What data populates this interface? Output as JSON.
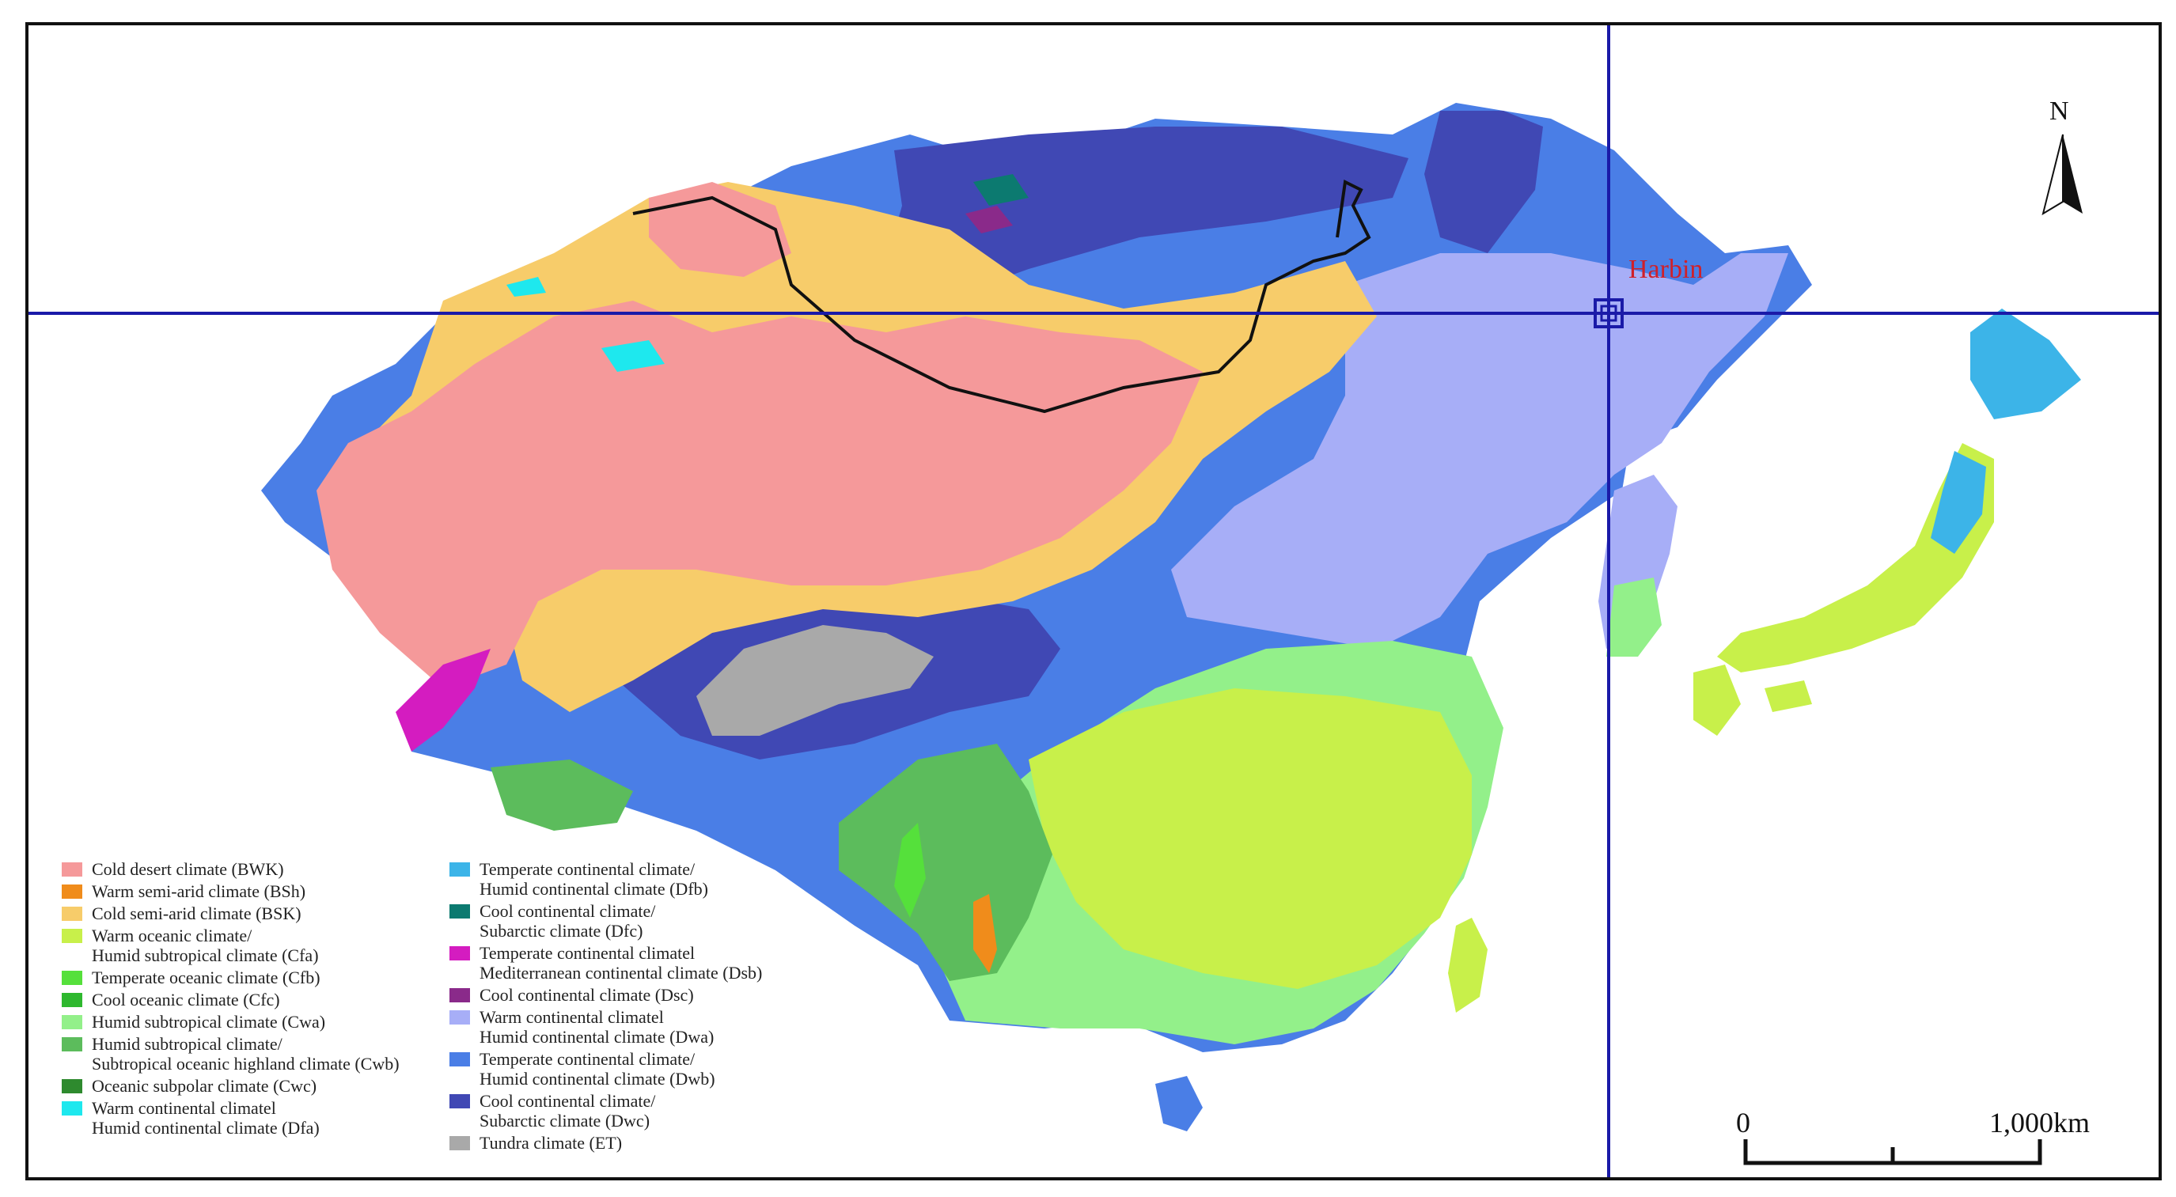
{
  "city": {
    "label": "Harbin"
  },
  "north_arrow": {
    "label": "N"
  },
  "scale_bar": {
    "start_label": "0",
    "end_label": "1,000km"
  },
  "legend": {
    "column_1": [
      {
        "lines": [
          "Cold desert climate (BWK)"
        ],
        "color": "#f5999a"
      },
      {
        "lines": [
          "Warm semi-arid climate (BSh)"
        ],
        "color": "#f08c1b"
      },
      {
        "lines": [
          "Cold semi-arid climate (BSK)"
        ],
        "color": "#f7cc6a"
      },
      {
        "lines": [
          "Warm oceanic climate/",
          "Humid subtropical climate (Cfa)"
        ],
        "color": "#c8f04a"
      },
      {
        "lines": [
          "Temperate oceanic climate (Cfb)"
        ],
        "color": "#55e03b"
      },
      {
        "lines": [
          "Cool oceanic climate (Cfc)"
        ],
        "color": "#2eb82e"
      },
      {
        "lines": [
          "Humid subtropical climate (Cwa)"
        ],
        "color": "#93f08a"
      },
      {
        "lines": [
          "Humid subtropical climate/",
          "Subtropical oceanic highland climate (Cwb)"
        ],
        "color": "#5cbc5c"
      },
      {
        "lines": [
          "Oceanic subpolar climate (Cwc)"
        ],
        "color": "#2e8a2e"
      },
      {
        "lines": [
          "Warm continental climatel",
          "Humid continental climate (Dfa)"
        ],
        "color": "#1ee8ee"
      }
    ],
    "column_2": [
      {
        "lines": [
          "Temperate continental climate/",
          "Humid continental climate (Dfb)"
        ],
        "color": "#3cb4e8"
      },
      {
        "lines": [
          "Cool continental climate/",
          "Subarctic climate (Dfc)"
        ],
        "color": "#0c7a70"
      },
      {
        "lines": [
          "Temperate continental climatel",
          "Mediterranean continental climate (Dsb)"
        ],
        "color": "#d41cc0"
      },
      {
        "lines": [
          "Cool continental climate (Dsc)"
        ],
        "color": "#8a2a8a"
      },
      {
        "lines": [
          "Warm continental climatel",
          "Humid continental climate (Dwa)"
        ],
        "color": "#a7aef7"
      },
      {
        "lines": [
          "Temperate continental climate/",
          "Humid continental climate (Dwb)"
        ],
        "color": "#4a7ee6"
      },
      {
        "lines": [
          "Cool continental climate/",
          "Subarctic climate (Dwc)"
        ],
        "color": "#4048b4"
      },
      {
        "lines": [
          "Tundra climate (ET)"
        ],
        "color": "#a9a9a9"
      }
    ]
  }
}
